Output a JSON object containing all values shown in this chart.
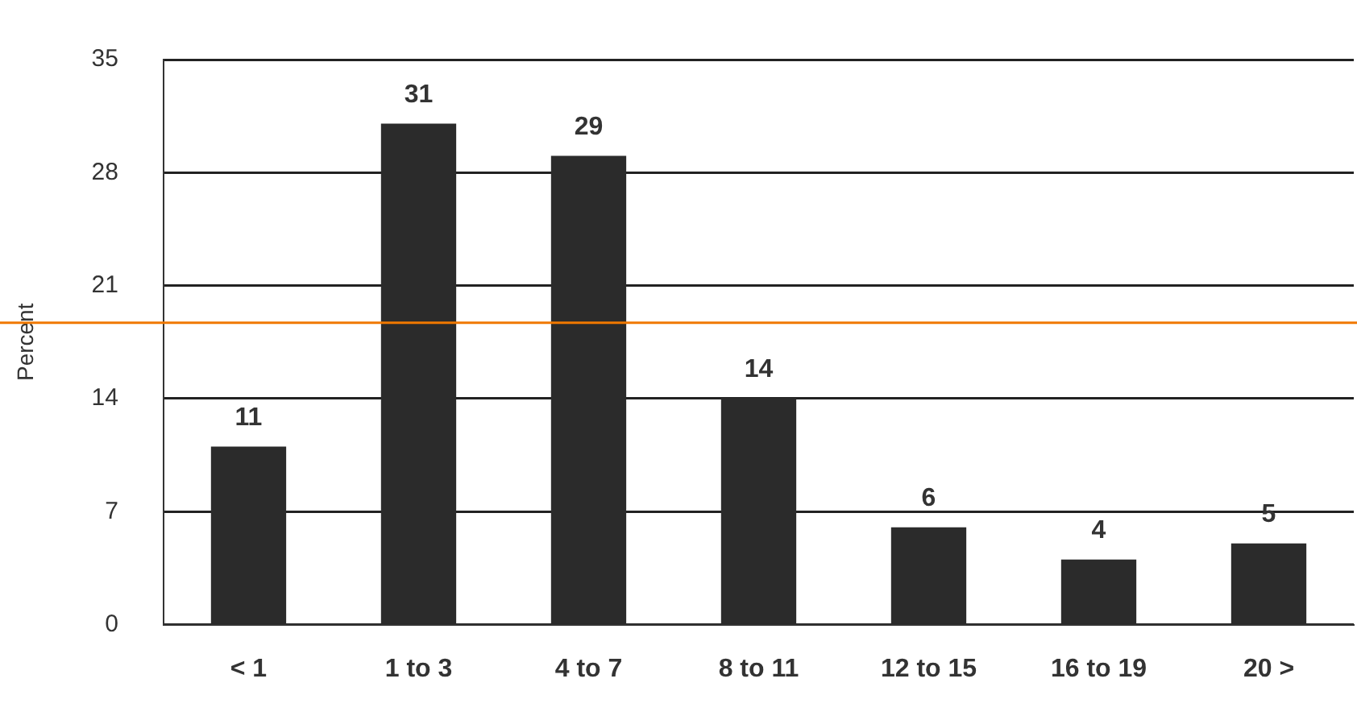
{
  "chart_data": {
    "type": "bar",
    "ylabel": "Percent",
    "categories": [
      "< 1",
      "1 to 3",
      "4 to 7",
      "8 to 11",
      "12 to 15",
      "16 to 19",
      "20 >"
    ],
    "values": [
      11,
      31,
      29,
      14,
      6,
      4,
      5
    ],
    "color": "#2b2b2b",
    "ylim": [
      0,
      35
    ],
    "yticks": [
      0,
      7,
      14,
      21,
      28,
      35
    ],
    "grid": "y",
    "data_labels": true,
    "ref_lines": [
      {
        "axis": "y",
        "value": 18.7,
        "color": "#f07800"
      }
    ]
  }
}
